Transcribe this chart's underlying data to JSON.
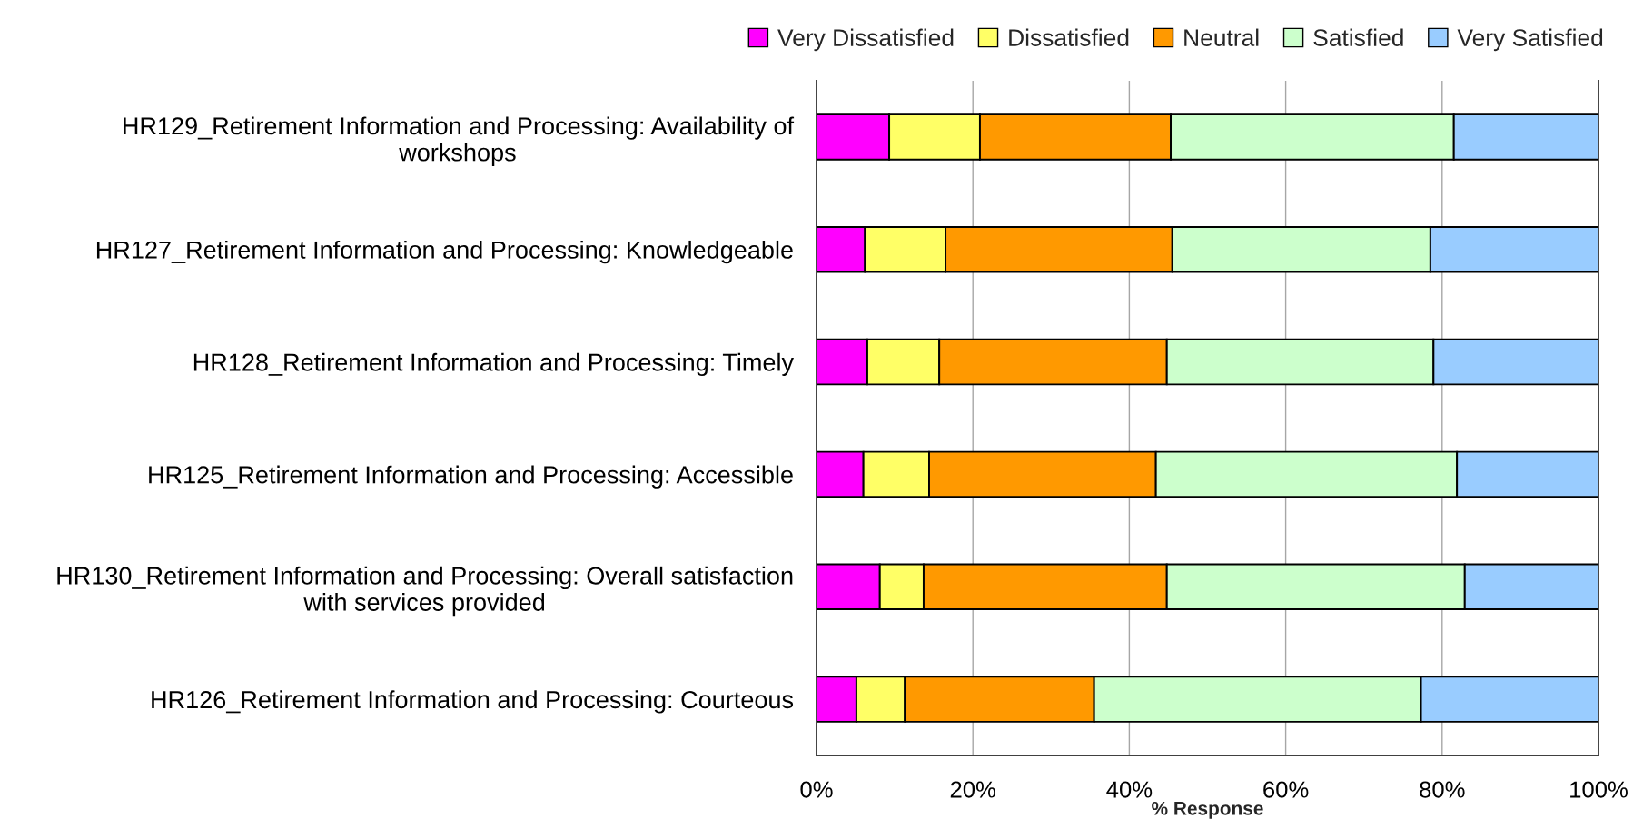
{
  "chart_data": {
    "type": "bar",
    "orientation": "horizontal",
    "stacked": true,
    "categories": [
      "HR129_Retirement Information and Processing: Availability of\nworkshops",
      "HR127_Retirement Information and Processing: Knowledgeable",
      "HR128_Retirement Information and Processing: Timely",
      "HR125_Retirement Information and Processing: Accessible",
      "HR130_Retirement Information and Processing: Overall satisfaction\nwith services provided",
      "HR126_Retirement Information and Processing: Courteous"
    ],
    "series": [
      {
        "name": "Very Dissatisfied",
        "color": "#ff00ff",
        "values": [
          9.3,
          6.2,
          6.5,
          6.0,
          8.1,
          5.1
        ]
      },
      {
        "name": "Dissatisfied",
        "color": "#ffff66",
        "values": [
          11.6,
          10.3,
          9.2,
          8.4,
          5.6,
          6.2
        ]
      },
      {
        "name": "Neutral",
        "color": "#ff9900",
        "values": [
          24.4,
          29.0,
          29.1,
          29.0,
          31.1,
          24.2
        ]
      },
      {
        "name": "Satisfied",
        "color": "#ccffcc",
        "values": [
          36.2,
          33.0,
          34.1,
          38.5,
          38.1,
          41.8
        ]
      },
      {
        "name": "Very Satisfied",
        "color": "#99ccff",
        "values": [
          18.5,
          21.5,
          21.1,
          18.1,
          17.1,
          22.7
        ]
      }
    ],
    "xlim": [
      0,
      100
    ],
    "xticks": [
      {
        "value": 0,
        "label": "0%"
      },
      {
        "value": 20,
        "label": "20%"
      },
      {
        "value": 40,
        "label": "40%"
      },
      {
        "value": 60,
        "label": "60%"
      },
      {
        "value": 80,
        "label": "80%"
      },
      {
        "value": 100,
        "label": "100%"
      }
    ],
    "xlabel": "% Response",
    "grid": "x",
    "legend": "top"
  }
}
